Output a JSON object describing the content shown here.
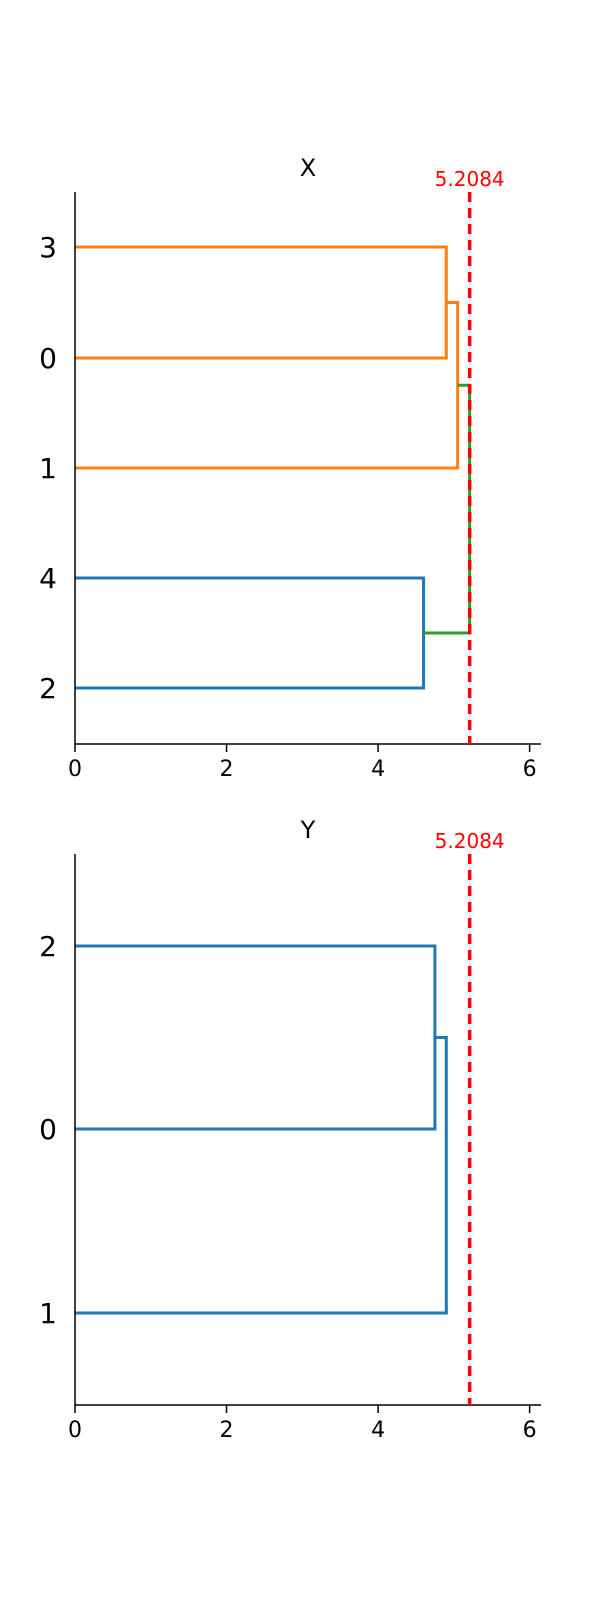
{
  "chart_data": [
    {
      "type": "dendrogram",
      "title": "X",
      "orientation": "horizontal",
      "xlim": [
        0,
        6.15
      ],
      "xticks": [
        0,
        2,
        4,
        6
      ],
      "leaves": [
        "3",
        "0",
        "1",
        "4",
        "2"
      ],
      "merges": [
        {
          "children": [
            "leaf:3",
            "leaf:0"
          ],
          "height": 4.9,
          "color": "#ff7f0e"
        },
        {
          "children": [
            "merge:0",
            "leaf:1"
          ],
          "height": 5.05,
          "color": "#ff7f0e"
        },
        {
          "children": [
            "leaf:4",
            "leaf:2"
          ],
          "height": 4.6,
          "color": "#1f77b4"
        },
        {
          "children": [
            "merge:1",
            "merge:2"
          ],
          "height": 5.2084,
          "color": "#2ca02c"
        }
      ],
      "threshold": {
        "value": 5.2084,
        "label": "5.2084",
        "color": "#ff0000"
      }
    },
    {
      "type": "dendrogram",
      "title": "Y",
      "orientation": "horizontal",
      "xlim": [
        0,
        6.15
      ],
      "xticks": [
        0,
        2,
        4,
        6
      ],
      "leaves": [
        "2",
        "0",
        "1"
      ],
      "merges": [
        {
          "children": [
            "leaf:2",
            "leaf:0"
          ],
          "height": 4.75,
          "color": "#1f77b4"
        },
        {
          "children": [
            "merge:0",
            "leaf:1"
          ],
          "height": 4.9,
          "color": "#1f77b4"
        }
      ],
      "threshold": {
        "value": 5.2084,
        "label": "5.2084",
        "color": "#ff0000"
      }
    }
  ]
}
